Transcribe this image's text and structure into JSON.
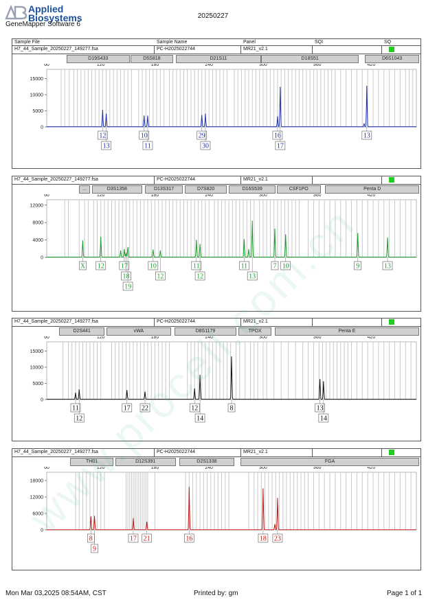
{
  "header": {
    "brand_line1": "Applied",
    "brand_line2": "Biosystems",
    "software": "GeneMapper Software 6",
    "report_date": "20250227"
  },
  "table_header": {
    "sample_file": "Sample File",
    "sample_name": "Sample Name",
    "panel": "Panel",
    "sqi": "SQI",
    "sq": "SQ"
  },
  "footer": {
    "printed_at": "Mon Mar 03,2025 08:54AM, CST",
    "printed_by": "Printed by: gm",
    "page": "Page 1 of 1"
  },
  "watermark_text": "www.procell.com.cn",
  "colors": {
    "blue": "#1f2fa8",
    "green": "#1d9a2a",
    "black": "#111111",
    "red": "#c01515",
    "quality_ok": "#22cc22",
    "bin_line": "#c8c8c8",
    "watermark": "#2fb18a"
  },
  "chart_data": [
    {
      "type": "line",
      "dye": "blue",
      "sample_file": "H7_44_Sample_20250227_149277.fsa",
      "sample_name": "PC-H2025022744",
      "panel": "MR21_v2.1",
      "xlim": [
        60,
        470
      ],
      "x_ticks": [
        60,
        120,
        180,
        240,
        300,
        360,
        420
      ],
      "ylim": [
        0,
        17000
      ],
      "y_ticks": [
        0,
        5000,
        10000,
        15000
      ],
      "markers": [
        {
          "name": "D19S433",
          "from": 82,
          "to": 152
        },
        {
          "name": "D5S818",
          "from": 153,
          "to": 200
        },
        {
          "name": "D21S11",
          "from": 203,
          "to": 298
        },
        {
          "name": "D18S51",
          "from": 298,
          "to": 406
        },
        {
          "name": "D6S1043",
          "from": 413,
          "to": 489
        }
      ],
      "bins": [
        76,
        80,
        85,
        90,
        94,
        98,
        102,
        106,
        110,
        114,
        118,
        122,
        126,
        130,
        134,
        138,
        142,
        146,
        150,
        154,
        162,
        166,
        170,
        174,
        178,
        182,
        186,
        190,
        196,
        200,
        204,
        208,
        212,
        216,
        220,
        224,
        228,
        232,
        236,
        240,
        244,
        248,
        252,
        256,
        260,
        268,
        272,
        276,
        280,
        284,
        288,
        292,
        296,
        300,
        304,
        308,
        312,
        316,
        320,
        324,
        328,
        332,
        336,
        340,
        344,
        348,
        352,
        356,
        360,
        364,
        368,
        372,
        376,
        380,
        386,
        392,
        398,
        404,
        410,
        416,
        422,
        428,
        434,
        440,
        446,
        452,
        458,
        462,
        466
      ],
      "peaks": [
        {
          "x": 122,
          "h": 5200
        },
        {
          "x": 126,
          "h": 4000
        },
        {
          "x": 168,
          "h": 3400
        },
        {
          "x": 172,
          "h": 3400
        },
        {
          "x": 232,
          "h": 3600
        },
        {
          "x": 236,
          "h": 4000
        },
        {
          "x": 316,
          "h": 3200
        },
        {
          "x": 319,
          "h": 12300
        },
        {
          "x": 412,
          "h": 1000
        },
        {
          "x": 415,
          "h": 12600
        }
      ],
      "allele_labels": [
        {
          "text": "12",
          "x": 122,
          "row": 0
        },
        {
          "text": "13",
          "x": 126,
          "row": 1
        },
        {
          "text": "10",
          "x": 168,
          "row": 0
        },
        {
          "text": "11",
          "x": 172,
          "row": 1
        },
        {
          "text": "29",
          "x": 232,
          "row": 0
        },
        {
          "text": "30",
          "x": 236,
          "row": 1
        },
        {
          "text": "16",
          "x": 316,
          "row": 0
        },
        {
          "text": "17",
          "x": 319,
          "row": 1
        },
        {
          "text": "13",
          "x": 415,
          "row": 0
        }
      ]
    },
    {
      "type": "line",
      "dye": "green",
      "sample_file": "H7_44_Sample_20250227_149277.fsa",
      "sample_name": "PC-H2025022744",
      "panel": "MR21_v2.1",
      "xlim": [
        60,
        470
      ],
      "x_ticks": [
        60,
        120,
        180,
        240,
        300,
        360,
        420
      ],
      "ylim": [
        0,
        12600
      ],
      "y_ticks": [
        0,
        4000,
        8000,
        12000
      ],
      "markers": [
        {
          "name": "...",
          "from": 96,
          "to": 108
        },
        {
          "name": "D3S1358",
          "from": 110,
          "to": 166
        },
        {
          "name": "D13S317",
          "from": 169,
          "to": 211
        },
        {
          "name": "D7S820",
          "from": 213,
          "to": 260
        },
        {
          "name": "D16S539",
          "from": 262,
          "to": 314
        },
        {
          "name": "CSF1PO",
          "from": 315,
          "to": 364
        },
        {
          "name": "Penta D",
          "from": 369,
          "to": 488
        }
      ],
      "bins": [
        80,
        84,
        96,
        102,
        106,
        112,
        116,
        120,
        124,
        128,
        132,
        136,
        140,
        144,
        148,
        152,
        156,
        160,
        164,
        168,
        172,
        176,
        180,
        184,
        188,
        192,
        196,
        200,
        204,
        208,
        212,
        216,
        220,
        224,
        228,
        232,
        236,
        240,
        246,
        250,
        254,
        258,
        262,
        266,
        270,
        274,
        278,
        282,
        286,
        290,
        296,
        300,
        304,
        308,
        312,
        316,
        320,
        324,
        328,
        332,
        336,
        340,
        350,
        356,
        362,
        368,
        374,
        380,
        386,
        392,
        398,
        404,
        410,
        416,
        422,
        428,
        434,
        440,
        446,
        452,
        458,
        464
      ],
      "peaks": [
        {
          "x": 100,
          "h": 3800
        },
        {
          "x": 120,
          "h": 4600
        },
        {
          "x": 142,
          "h": 1500
        },
        {
          "x": 146,
          "h": 1800
        },
        {
          "x": 148,
          "h": 1000
        },
        {
          "x": 150,
          "h": 2300
        },
        {
          "x": 178,
          "h": 1700
        },
        {
          "x": 186,
          "h": 1500
        },
        {
          "x": 226,
          "h": 3900
        },
        {
          "x": 230,
          "h": 3000
        },
        {
          "x": 279,
          "h": 4100
        },
        {
          "x": 284,
          "h": 1800
        },
        {
          "x": 288,
          "h": 8300
        },
        {
          "x": 313,
          "h": 6500
        },
        {
          "x": 325,
          "h": 5200
        },
        {
          "x": 405,
          "h": 5500
        },
        {
          "x": 438,
          "h": 4500
        }
      ],
      "allele_labels": [
        {
          "text": "X",
          "x": 100,
          "row": 0
        },
        {
          "text": "12",
          "x": 120,
          "row": 0
        },
        {
          "text": "17",
          "x": 146,
          "row": 0
        },
        {
          "text": "18",
          "x": 148,
          "row": 1
        },
        {
          "text": "19",
          "x": 150,
          "row": 2
        },
        {
          "text": "10",
          "x": 178,
          "row": 0
        },
        {
          "text": "12",
          "x": 186,
          "row": 1
        },
        {
          "text": "11",
          "x": 226,
          "row": 0
        },
        {
          "text": "12",
          "x": 230,
          "row": 1
        },
        {
          "text": "11",
          "x": 279,
          "row": 0
        },
        {
          "text": "13",
          "x": 288,
          "row": 1
        },
        {
          "text": "7",
          "x": 313,
          "row": 0
        },
        {
          "text": "10",
          "x": 325,
          "row": 0
        },
        {
          "text": "9",
          "x": 405,
          "row": 0
        },
        {
          "text": "13",
          "x": 438,
          "row": 0
        }
      ]
    },
    {
      "type": "line",
      "dye": "black",
      "sample_file": "H7_44_Sample_20250227_149277.fsa",
      "sample_name": "PC-H2025022744",
      "panel": "MR21_v2.1",
      "xlim": [
        60,
        470
      ],
      "x_ticks": [
        60,
        120,
        180,
        240,
        300,
        360,
        420
      ],
      "ylim": [
        0,
        17000
      ],
      "y_ticks": [
        0,
        5000,
        10000,
        15000
      ],
      "markers": [
        {
          "name": "D2S441",
          "from": 74,
          "to": 124
        },
        {
          "name": "vWA",
          "from": 126,
          "to": 198
        },
        {
          "name": "D8S1179",
          "from": 202,
          "to": 270
        },
        {
          "name": "TPOX",
          "from": 273,
          "to": 309
        },
        {
          "name": "Penta E",
          "from": 313,
          "to": 487
        }
      ],
      "bins": [
        78,
        84,
        88,
        92,
        96,
        100,
        104,
        108,
        112,
        116,
        120,
        132,
        136,
        140,
        144,
        148,
        152,
        156,
        160,
        164,
        168,
        172,
        176,
        180,
        184,
        188,
        192,
        196,
        216,
        220,
        224,
        228,
        232,
        236,
        240,
        244,
        248,
        252,
        256,
        260,
        264,
        270,
        274,
        280,
        286,
        290,
        294,
        300,
        304,
        312,
        320,
        328,
        336,
        344,
        350,
        356,
        362,
        366,
        370,
        374,
        378,
        382,
        386,
        390,
        394,
        398,
        404,
        410,
        416,
        422,
        428,
        434,
        440,
        446,
        452,
        458,
        464
      ],
      "peaks": [
        {
          "x": 92,
          "h": 2000
        },
        {
          "x": 96,
          "h": 3000
        },
        {
          "x": 149,
          "h": 2800
        },
        {
          "x": 169,
          "h": 2300
        },
        {
          "x": 224,
          "h": 3300
        },
        {
          "x": 230,
          "h": 7500
        },
        {
          "x": 265,
          "h": 13200
        },
        {
          "x": 363,
          "h": 6200
        },
        {
          "x": 367,
          "h": 5500
        }
      ],
      "allele_labels": [
        {
          "text": "11",
          "x": 92,
          "row": 0
        },
        {
          "text": "12",
          "x": 96,
          "row": 1
        },
        {
          "text": "17",
          "x": 149,
          "row": 0
        },
        {
          "text": "22",
          "x": 169,
          "row": 0
        },
        {
          "text": "12",
          "x": 224,
          "row": 0
        },
        {
          "text": "14",
          "x": 230,
          "row": 1
        },
        {
          "text": "8",
          "x": 265,
          "row": 0
        },
        {
          "text": "13",
          "x": 363,
          "row": 0
        },
        {
          "text": "14",
          "x": 367,
          "row": 1
        }
      ]
    },
    {
      "type": "line",
      "dye": "red",
      "sample_file": "H7_44_Sample_20250227_149277.fsa",
      "sample_name": "PC-H2025022744",
      "panel": "MR21_v2.1",
      "xlim": [
        60,
        470
      ],
      "x_ticks": [
        60,
        120,
        180,
        240,
        300,
        360,
        420
      ],
      "ylim": [
        0,
        20000
      ],
      "y_ticks": [
        0,
        6000,
        12000,
        18000
      ],
      "markers": [
        {
          "name": "TH01",
          "from": 86,
          "to": 134
        },
        {
          "name": "D12S391",
          "from": 136,
          "to": 203
        },
        {
          "name": "D2S1338",
          "from": 207,
          "to": 268
        },
        {
          "name": "FGA",
          "from": 275,
          "to": 485
        }
      ],
      "bins": [
        92,
        96,
        100,
        104,
        108,
        112,
        116,
        120,
        124,
        148,
        150,
        152,
        154,
        156,
        158,
        160,
        162,
        164,
        166,
        168,
        170,
        172,
        180,
        214,
        218,
        222,
        226,
        230,
        234,
        238,
        242,
        246,
        250,
        254,
        258,
        262,
        284,
        290,
        294,
        298,
        302,
        306,
        310,
        314,
        318,
        322,
        326,
        330,
        334,
        338,
        342,
        346,
        350,
        356,
        362,
        368,
        374,
        380,
        386,
        392,
        398,
        404,
        410,
        416,
        422,
        428,
        434,
        440,
        446,
        452,
        458,
        464
      ],
      "peaks": [
        {
          "x": 109,
          "h": 4800
        },
        {
          "x": 113,
          "h": 5000
        },
        {
          "x": 156,
          "h": 4200
        },
        {
          "x": 171,
          "h": 2900
        },
        {
          "x": 218,
          "h": 15500
        },
        {
          "x": 300,
          "h": 15000
        },
        {
          "x": 313,
          "h": 2000
        },
        {
          "x": 316,
          "h": 11500
        }
      ],
      "allele_labels": [
        {
          "text": "8",
          "x": 109,
          "row": 0
        },
        {
          "text": "9",
          "x": 113,
          "row": 1
        },
        {
          "text": "17",
          "x": 156,
          "row": 0
        },
        {
          "text": "21",
          "x": 171,
          "row": 0
        },
        {
          "text": "16",
          "x": 218,
          "row": 0
        },
        {
          "text": "18",
          "x": 300,
          "row": 0
        },
        {
          "text": "23",
          "x": 316,
          "row": 0
        }
      ]
    }
  ]
}
